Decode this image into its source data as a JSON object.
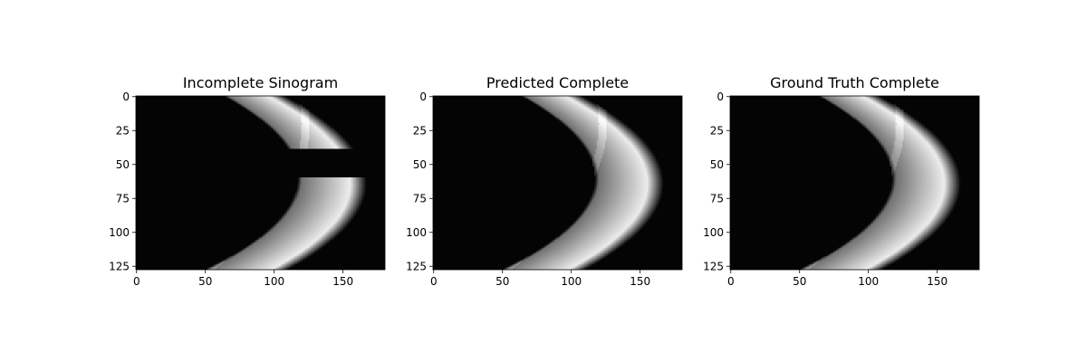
{
  "chart_data": [
    {
      "type": "heatmap",
      "title": "Incomplete Sinogram",
      "xlabel": "",
      "ylabel": "",
      "image_size": [
        181,
        128
      ],
      "colormap": "gray",
      "xlim": [
        -0.5,
        180.5
      ],
      "ylim": [
        127.5,
        -0.5
      ],
      "xticks": [
        0,
        50,
        100,
        150
      ],
      "yticks": [
        0,
        25,
        50,
        75,
        100,
        125
      ],
      "grid": false,
      "missing_rows": [
        39,
        59
      ]
    },
    {
      "type": "heatmap",
      "title": "Predicted Complete",
      "xlabel": "",
      "ylabel": "",
      "image_size": [
        181,
        128
      ],
      "colormap": "gray",
      "xlim": [
        -0.5,
        180.5
      ],
      "ylim": [
        127.5,
        -0.5
      ],
      "xticks": [
        0,
        50,
        100,
        150
      ],
      "yticks": [
        0,
        25,
        50,
        75,
        100,
        125
      ],
      "grid": false
    },
    {
      "type": "heatmap",
      "title": "Ground Truth Complete",
      "xlabel": "",
      "ylabel": "",
      "image_size": [
        181,
        128
      ],
      "colormap": "gray",
      "xlim": [
        -0.5,
        180.5
      ],
      "ylim": [
        127.5,
        -0.5
      ],
      "xticks": [
        0,
        50,
        100,
        150
      ],
      "yticks": [
        0,
        25,
        50,
        75,
        100,
        125
      ],
      "grid": false
    }
  ]
}
